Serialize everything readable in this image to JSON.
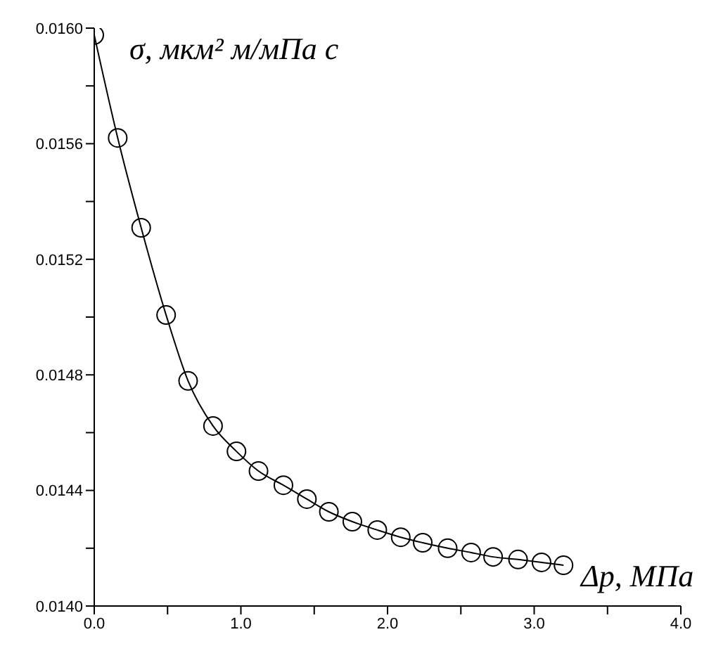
{
  "chart_data": {
    "type": "line",
    "xlabel": "Δp, МПа",
    "ylabel": "σ, мкм² м/мПа с",
    "x": [
      0,
      0.16,
      0.32,
      0.49,
      0.64,
      0.81,
      0.97,
      1.12,
      1.29,
      1.45,
      1.6,
      1.76,
      1.93,
      2.09,
      2.24,
      2.41,
      2.57,
      2.72,
      2.89,
      3.05,
      3.2
    ],
    "series": [
      {
        "color": "#000000",
        "values": [
          0.015976,
          0.01562,
          0.015309,
          0.015007,
          0.014779,
          0.014623,
          0.014535,
          0.014467,
          0.014418,
          0.01437,
          0.014326,
          0.014292,
          0.014263,
          0.014238,
          0.014219,
          0.0142,
          0.014185,
          0.01417,
          0.014161,
          0.014151,
          0.014141
        ]
      }
    ],
    "xlim": [
      0,
      4
    ],
    "ylim": [
      0.014,
      0.016
    ],
    "xticks": [
      {
        "value": 0,
        "label": "0.0"
      },
      {
        "value": 0.5,
        "label": null
      },
      {
        "value": 1,
        "label": "1.0"
      },
      {
        "value": 1.5,
        "label": null
      },
      {
        "value": 2,
        "label": "2.0"
      },
      {
        "value": 2.5,
        "label": null
      },
      {
        "value": 3,
        "label": "3.0"
      },
      {
        "value": 3.5,
        "label": null
      },
      {
        "value": 4,
        "label": "4.0"
      }
    ],
    "yticks": [
      {
        "value": 0.014,
        "label": "0.0140"
      },
      {
        "value": 0.0142,
        "label": null
      },
      {
        "value": 0.0144,
        "label": "0.0144"
      },
      {
        "value": 0.0146,
        "label": null
      },
      {
        "value": 0.0148,
        "label": "0.0148"
      },
      {
        "value": 0.015,
        "label": null
      },
      {
        "value": 0.0152,
        "label": "0.0152"
      },
      {
        "value": 0.0154,
        "label": null
      },
      {
        "value": 0.0156,
        "label": "0.0156"
      },
      {
        "value": 0.0158,
        "label": null
      },
      {
        "value": 0.016,
        "label": "0.0160"
      }
    ],
    "grid": false,
    "legend": false,
    "marker": "circle",
    "line_style": "solid"
  }
}
